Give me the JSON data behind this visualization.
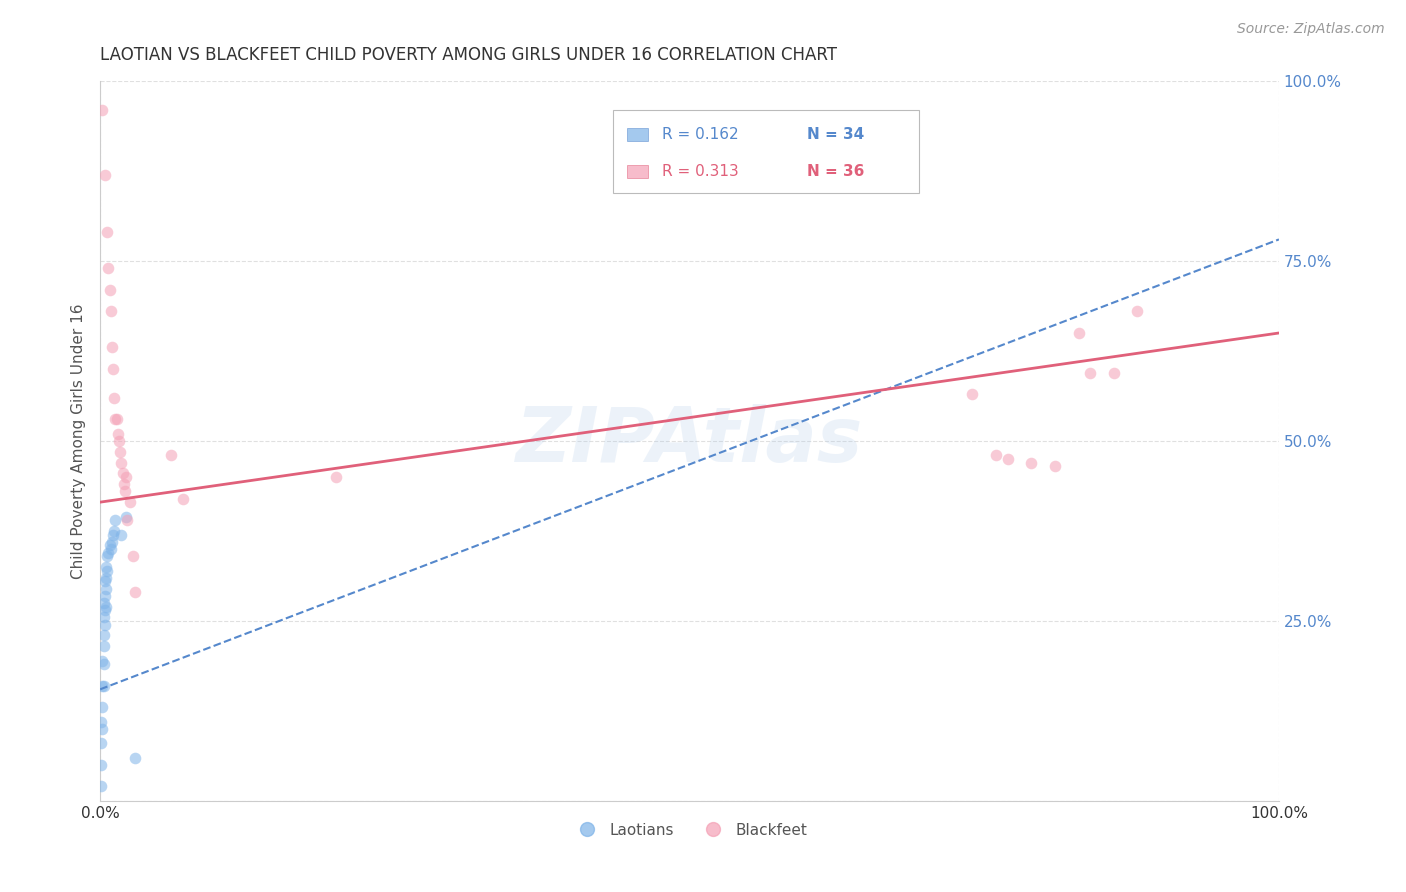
{
  "title": "LAOTIAN VS BLACKFEET CHILD POVERTY AMONG GIRLS UNDER 16 CORRELATION CHART",
  "source": "Source: ZipAtlas.com",
  "ylabel": "Child Poverty Among Girls Under 16",
  "watermark": "ZIPAtlas",
  "legend_blue_R": "R = 0.162",
  "legend_blue_N": "N = 34",
  "legend_pink_R": "R = 0.313",
  "legend_pink_N": "N = 36",
  "xlim": [
    0,
    1.0
  ],
  "ylim": [
    0,
    1.0
  ],
  "grid_color": "#cccccc",
  "blue_color": "#7eb3e8",
  "pink_color": "#f4a0b5",
  "blue_line_color": "#5588cc",
  "pink_line_color": "#e0607a",
  "blue_scatter_x": [
    0.001,
    0.001,
    0.001,
    0.001,
    0.002,
    0.002,
    0.002,
    0.002,
    0.003,
    0.003,
    0.003,
    0.003,
    0.003,
    0.003,
    0.004,
    0.004,
    0.004,
    0.004,
    0.005,
    0.005,
    0.005,
    0.005,
    0.006,
    0.006,
    0.007,
    0.008,
    0.009,
    0.01,
    0.011,
    0.012,
    0.013,
    0.018,
    0.022,
    0.03
  ],
  "blue_scatter_y": [
    0.02,
    0.05,
    0.08,
    0.11,
    0.1,
    0.13,
    0.16,
    0.195,
    0.16,
    0.19,
    0.215,
    0.23,
    0.255,
    0.275,
    0.245,
    0.265,
    0.285,
    0.305,
    0.27,
    0.295,
    0.31,
    0.325,
    0.32,
    0.34,
    0.345,
    0.355,
    0.35,
    0.36,
    0.37,
    0.375,
    0.39,
    0.37,
    0.395,
    0.06
  ],
  "pink_scatter_x": [
    0.002,
    0.004,
    0.006,
    0.007,
    0.008,
    0.009,
    0.01,
    0.011,
    0.012,
    0.013,
    0.014,
    0.015,
    0.016,
    0.017,
    0.018,
    0.019,
    0.02,
    0.021,
    0.022,
    0.023,
    0.025,
    0.028,
    0.03,
    0.06,
    0.07,
    0.2,
    0.68,
    0.74,
    0.76,
    0.77,
    0.79,
    0.81,
    0.83,
    0.84,
    0.86,
    0.88
  ],
  "pink_scatter_y": [
    0.96,
    0.87,
    0.79,
    0.74,
    0.71,
    0.68,
    0.63,
    0.6,
    0.56,
    0.53,
    0.53,
    0.51,
    0.5,
    0.485,
    0.47,
    0.455,
    0.44,
    0.43,
    0.45,
    0.39,
    0.415,
    0.34,
    0.29,
    0.48,
    0.42,
    0.45,
    0.88,
    0.565,
    0.48,
    0.475,
    0.47,
    0.465,
    0.65,
    0.595,
    0.595,
    0.68
  ],
  "blue_line_x": [
    0.0,
    1.0
  ],
  "blue_line_y": [
    0.155,
    0.78
  ],
  "pink_line_x": [
    0.0,
    1.0
  ],
  "pink_line_y": [
    0.415,
    0.65
  ],
  "background_color": "#ffffff",
  "title_color": "#333333",
  "title_fontsize": 12,
  "source_fontsize": 10,
  "ylabel_fontsize": 11,
  "scatter_size": 70,
  "scatter_alpha": 0.55,
  "ytick_color": "#5588cc",
  "xtick_color": "#333333"
}
